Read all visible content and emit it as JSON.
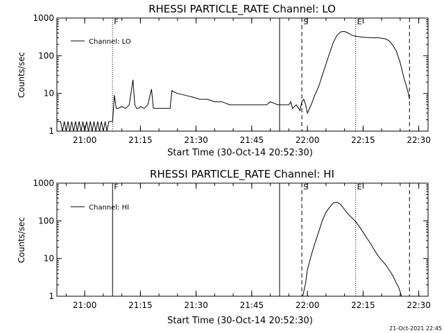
{
  "footer": {
    "timestamp": "21-Oct-2021 22:45"
  },
  "chart_data": [
    {
      "type": "line",
      "title": "RHESSI PARTICLE_RATE Channel: LO",
      "xlabel": "Start Time (30-Oct-14 20:52:30)",
      "ylabel": "Counts/sec",
      "yscale": "log",
      "xlim": [
        "20:52:30",
        "22:32:30"
      ],
      "ylim": [
        1,
        1000
      ],
      "x_ticks": [
        "21:00",
        "21:15",
        "21:30",
        "21:45",
        "22:00",
        "22:15",
        "22:30"
      ],
      "y_ticks": [
        "1",
        "10",
        "100",
        "1000"
      ],
      "legend": {
        "position": "top-left"
      },
      "markers": [
        {
          "label": "F",
          "time": "21:07:30",
          "style": "dotted"
        },
        {
          "label": "",
          "time": "21:52:30",
          "style": "solid"
        },
        {
          "label": "S",
          "time": "21:58:30",
          "style": "dashed"
        },
        {
          "label": "E",
          "time": "22:13:00",
          "style": "dotted"
        },
        {
          "label": "",
          "time": "22:27:30",
          "style": "dashed"
        }
      ],
      "series": [
        {
          "name": "Channel: LO",
          "x": [
            "20:52:30",
            "20:53:30",
            "20:54:00",
            "20:54:30",
            "20:55:00",
            "20:55:30",
            "20:56:00",
            "20:56:30",
            "20:57:00",
            "20:57:30",
            "20:58:00",
            "20:58:30",
            "20:59:00",
            "20:59:30",
            "21:00:00",
            "21:00:30",
            "21:01:00",
            "21:01:30",
            "21:02:00",
            "21:02:30",
            "21:03:00",
            "21:03:30",
            "21:04:00",
            "21:04:30",
            "21:05:00",
            "21:05:30",
            "21:06:00",
            "21:06:30",
            "21:07:30",
            "21:08:00",
            "21:08:30",
            "21:09:00",
            "21:10:00",
            "21:11:00",
            "21:12:00",
            "21:13:00",
            "21:13:30",
            "21:14:00",
            "21:14:30",
            "21:15:00",
            "21:16:00",
            "21:17:00",
            "21:18:00",
            "21:18:30",
            "21:19:00",
            "21:19:30",
            "21:20:00",
            "21:21:00",
            "21:22:00",
            "21:23:00",
            "21:23:30",
            "21:24:00",
            "21:25:00",
            "21:27:00",
            "21:29:00",
            "21:31:00",
            "21:33:00",
            "21:35:00",
            "21:37:00",
            "21:39:00",
            "21:41:00",
            "21:43:00",
            "21:45:00",
            "21:47:00",
            "21:49:00",
            "21:50:00",
            "21:52:00",
            "21:54:00",
            "21:55:00",
            "21:55:30",
            "21:56:00",
            "21:57:00",
            "21:58:00",
            "21:58:30",
            "21:59:00",
            "21:59:30",
            "22:00:00",
            "22:01:00",
            "22:02:00",
            "22:03:00",
            "22:04:00",
            "22:05:00",
            "22:06:00",
            "22:07:00",
            "22:08:00",
            "22:09:00",
            "22:10:00",
            "22:11:00",
            "22:12:00",
            "22:13:00",
            "22:15:00",
            "22:17:00",
            "22:19:00",
            "22:21:00",
            "22:22:00",
            "22:23:00",
            "22:24:00",
            "22:25:00",
            "22:26:00",
            "22:27:00",
            "22:27:30"
          ],
          "y": [
            1.8,
            1.8,
            1,
            1.8,
            1,
            1.8,
            1,
            1.8,
            1,
            1.8,
            1,
            1.8,
            1,
            1.8,
            1,
            1.8,
            1,
            1.8,
            1,
            1.8,
            1,
            1.8,
            1,
            1.8,
            1,
            1.8,
            1,
            1.8,
            1.8,
            9,
            4,
            4,
            4.5,
            4,
            5,
            23,
            5,
            4,
            4,
            4.5,
            4,
            5,
            13,
            4,
            4,
            4,
            4,
            4,
            4,
            4,
            12,
            11,
            10,
            9,
            8,
            7,
            7,
            6,
            6,
            5,
            5,
            5,
            5,
            5,
            5,
            6,
            5,
            5,
            5,
            6,
            4,
            5,
            3.5,
            6,
            7,
            5,
            3,
            5,
            9,
            15,
            30,
            60,
            120,
            230,
            350,
            430,
            440,
            400,
            350,
            330,
            310,
            300,
            300,
            280,
            250,
            190,
            130,
            65,
            26,
            12,
            7
          ]
        }
      ]
    },
    {
      "type": "line",
      "title": "RHESSI PARTICLE_RATE Channel: HI",
      "xlabel": "Start Time (30-Oct-14 20:52:30)",
      "ylabel": "Counts/sec",
      "yscale": "log",
      "xlim": [
        "20:52:30",
        "22:32:30"
      ],
      "ylim": [
        1,
        1000
      ],
      "x_ticks": [
        "21:00",
        "21:15",
        "21:30",
        "21:45",
        "22:00",
        "22:15",
        "22:30"
      ],
      "y_ticks": [
        "1",
        "10",
        "100",
        "1000"
      ],
      "legend": {
        "position": "top-left"
      },
      "markers": [
        {
          "label": "F",
          "time": "21:07:30",
          "style": "solid"
        },
        {
          "label": "",
          "time": "21:52:30",
          "style": "solid"
        },
        {
          "label": "S",
          "time": "21:58:30",
          "style": "dashed"
        },
        {
          "label": "E",
          "time": "22:13:00",
          "style": "dotted"
        },
        {
          "label": "",
          "time": "22:27:30",
          "style": "dashed"
        }
      ],
      "series": [
        {
          "name": "Channel: HI",
          "x": [
            "21:58:45",
            "21:59:30",
            "22:00:00",
            "22:01:00",
            "22:02:00",
            "22:03:00",
            "22:04:00",
            "22:05:00",
            "22:06:00",
            "22:07:00",
            "22:08:00",
            "22:09:00",
            "22:10:00",
            "22:11:00",
            "22:12:00",
            "22:13:00",
            "22:14:00",
            "22:15:00",
            "22:16:00",
            "22:17:00",
            "22:18:00",
            "22:19:00",
            "22:20:00",
            "22:21:00",
            "22:22:00",
            "22:23:00",
            "22:24:00",
            "22:24:30",
            "22:25:00",
            "22:25:20"
          ],
          "y": [
            1,
            2.2,
            5,
            12,
            25,
            50,
            100,
            170,
            230,
            300,
            310,
            270,
            200,
            150,
            120,
            95,
            70,
            50,
            35,
            25,
            17,
            12,
            9,
            7,
            5,
            3.5,
            2.2,
            1.8,
            1.3,
            1
          ]
        }
      ]
    }
  ]
}
